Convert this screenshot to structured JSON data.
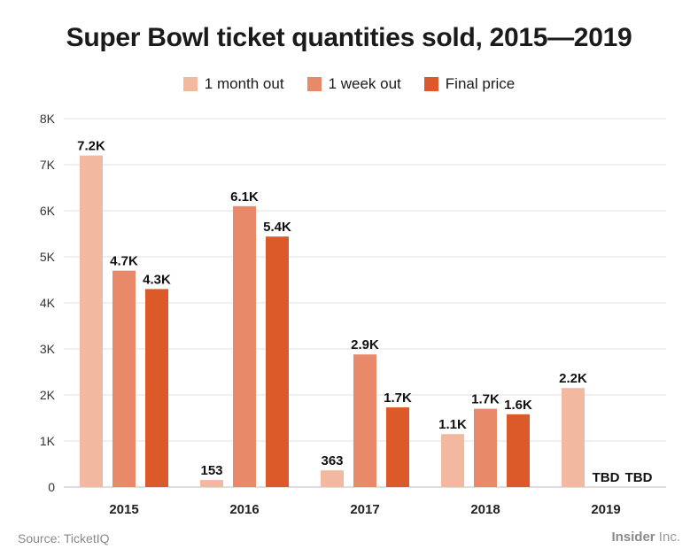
{
  "chart_data": {
    "type": "bar",
    "title": "Super Bowl ticket quantities sold, 2015—2019",
    "categories": [
      "2015",
      "2016",
      "2017",
      "2018",
      "2019"
    ],
    "series": [
      {
        "name": "1 month out",
        "color": "#f2b9a0",
        "values": [
          7200,
          153,
          363,
          1150,
          2150
        ],
        "labels": [
          "7.2K",
          "153",
          "363",
          "1.1K",
          "2.2K"
        ]
      },
      {
        "name": "1 week out",
        "color": "#e8896a",
        "values": [
          4700,
          6100,
          2880,
          1700,
          null
        ],
        "labels": [
          "4.7K",
          "6.1K",
          "2.9K",
          "1.7K",
          "TBD"
        ]
      },
      {
        "name": "Final price",
        "color": "#dc5a2a",
        "values": [
          4300,
          5440,
          1730,
          1580,
          null
        ],
        "labels": [
          "4.3K",
          "5.4K",
          "1.7K",
          "1.6K",
          "TBD"
        ]
      }
    ],
    "yticks": [
      "0",
      "1K",
      "2K",
      "3K",
      "4K",
      "5K",
      "6K",
      "7K",
      "8K"
    ],
    "ylim": [
      0,
      8000
    ],
    "grid": true,
    "legend_position": "top-center"
  },
  "footer": {
    "source": "Source: TicketIQ",
    "brand_bold": "Insider",
    "brand_rest": " Inc."
  }
}
